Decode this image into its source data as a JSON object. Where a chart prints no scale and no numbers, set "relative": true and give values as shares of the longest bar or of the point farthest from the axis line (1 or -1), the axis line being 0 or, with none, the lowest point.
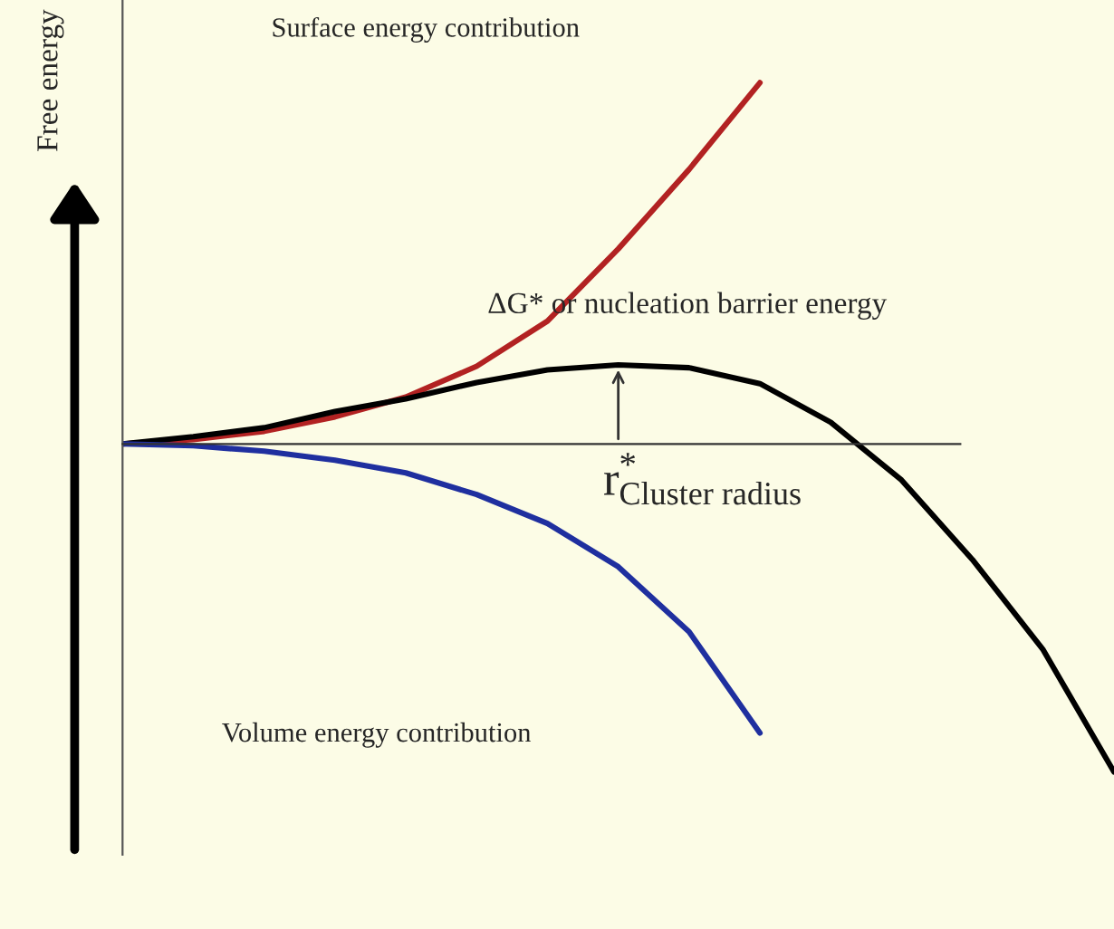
{
  "chart_data": {
    "type": "line",
    "relative": true,
    "ylabel": "Free energy",
    "marker": "none",
    "line_style": "solid",
    "categories": [
      null,
      null,
      null,
      null,
      null,
      null,
      null,
      null,
      null,
      null,
      null,
      null,
      null,
      null,
      null
    ],
    "series": [
      {
        "color": "#b22222",
        "values": [
          0,
          0.012,
          0.035,
          0.075,
          0.13,
          0.215,
          0.34,
          0.54,
          0.76,
          1,
          null,
          null,
          null,
          null,
          null
        ]
      },
      {
        "color": "#000000",
        "values": [
          0,
          0.02,
          0.045,
          0.09,
          0.125,
          0.17,
          0.205,
          0.219,
          0.211,
          0.167,
          0.06,
          -0.1,
          -0.32,
          -0.57,
          -0.908
        ]
      },
      {
        "color": "#1f2f9f",
        "values": [
          0,
          -0.005,
          -0.02,
          -0.045,
          -0.08,
          -0.14,
          -0.22,
          -0.34,
          -0.52,
          -0.8,
          null,
          null,
          null,
          null,
          null
        ]
      }
    ],
    "annotations": [
      "Surface energy contribution",
      "Volume energy contribution",
      "ΔG* or nucleation barrier energy",
      "r$^{*}$$_{Cluster radius}$"
    ]
  }
}
